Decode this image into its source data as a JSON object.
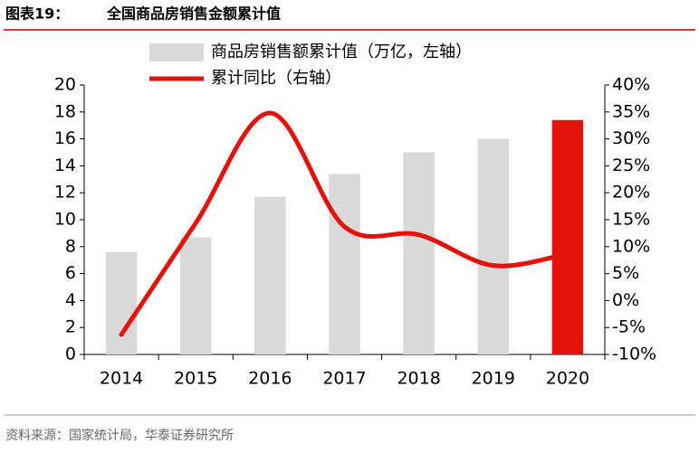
{
  "header": {
    "label": "图表19：",
    "title": "全国商品房销售金额累计值"
  },
  "chart_data": {
    "type": "bar",
    "categories": [
      "2014",
      "2015",
      "2016",
      "2017",
      "2018",
      "2019",
      "2020"
    ],
    "series": [
      {
        "name": "商品房销售额累计值（万亿，左轴）",
        "type": "bar",
        "color": "#d9d9d9",
        "colors": [
          "#d9d9d9",
          "#d9d9d9",
          "#d9d9d9",
          "#d9d9d9",
          "#d9d9d9",
          "#d9d9d9",
          "#e3120b"
        ],
        "values": [
          7.6,
          8.7,
          11.7,
          13.4,
          15.0,
          16.0,
          17.4
        ]
      },
      {
        "name": "累计同比（右轴）",
        "type": "line",
        "axis": "y2",
        "color": "#e3120b",
        "values": [
          -6.3,
          14.4,
          34.8,
          13.7,
          12.2,
          6.5,
          8.7
        ]
      }
    ],
    "ylim": [
      0,
      20
    ],
    "yticks": [
      0,
      2,
      4,
      6,
      8,
      10,
      12,
      14,
      16,
      18,
      20
    ],
    "y2lim": [
      -10,
      40
    ],
    "y2ticks": [
      {
        "value": -10,
        "label": "-10%"
      },
      {
        "value": -5,
        "label": "-5%"
      },
      {
        "value": 0,
        "label": "0%"
      },
      {
        "value": 5,
        "label": "5%"
      },
      {
        "value": 10,
        "label": "10%"
      },
      {
        "value": 15,
        "label": "15%"
      },
      {
        "value": 20,
        "label": "20%"
      },
      {
        "value": 25,
        "label": "25%"
      },
      {
        "value": 30,
        "label": "30%"
      },
      {
        "value": 35,
        "label": "35%"
      },
      {
        "value": 40,
        "label": "40%"
      }
    ],
    "grid": false,
    "legend": "top"
  },
  "footer": {
    "source": "资料来源：国家统计局，华泰证券研究所"
  }
}
